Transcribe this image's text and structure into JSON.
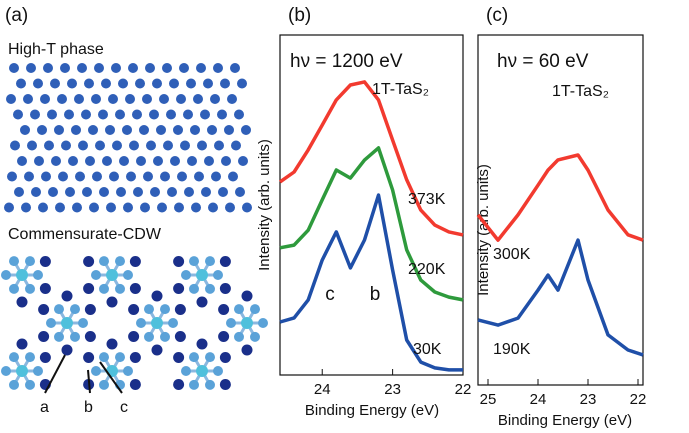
{
  "panel_a": {
    "label": "(a)",
    "top_title": "High-T  phase",
    "bottom_title": "Commensurate-CDW",
    "site_labels": [
      "a",
      "b",
      "c"
    ]
  },
  "chart_data": [
    {
      "type": "line",
      "label": "(b)",
      "annotations": [
        "hν = 1200 eV",
        "1T-TaS₂",
        "c",
        "b"
      ],
      "x_label": "Binding Energy (eV)",
      "y_label": "Intensity (arb. units)",
      "x": [
        24.6,
        24.4,
        24.2,
        24.0,
        23.8,
        23.6,
        23.4,
        23.2,
        23.0,
        22.8,
        22.6,
        22.4,
        22.2,
        22.0
      ],
      "xlim": [
        24.6,
        22
      ],
      "xticks": [
        24,
        23,
        22
      ],
      "ylim": [
        0,
        10
      ],
      "series": [
        {
          "name": "373K",
          "color": "#f23a2f",
          "values": [
            5.68,
            5.97,
            6.62,
            7.35,
            8.09,
            8.53,
            8.62,
            8.09,
            6.91,
            5.74,
            4.85,
            4.41,
            4.21,
            4.12
          ]
        },
        {
          "name": "220K",
          "color": "#2e9a3c",
          "values": [
            3.74,
            3.82,
            4.26,
            5.15,
            6.03,
            5.79,
            6.32,
            6.68,
            5.44,
            3.68,
            2.79,
            2.44,
            2.29,
            2.21
          ]
        },
        {
          "name": "30K",
          "color": "#1f4fa8",
          "values": [
            1.56,
            1.68,
            2.21,
            3.38,
            4.21,
            3.15,
            3.97,
            5.29,
            3.09,
            1.03,
            0.38,
            0.21,
            0.15,
            0.15
          ]
        }
      ]
    },
    {
      "type": "line",
      "label": "(c)",
      "annotations": [
        "hν = 60 eV",
        "1T-TaS₂"
      ],
      "x_label": "Binding Energy (eV)",
      "y_label": "Intensity (arb. units)",
      "x": [
        25.2,
        24.8,
        24.4,
        24.0,
        23.8,
        23.6,
        23.2,
        23.0,
        22.6,
        22.2,
        21.9
      ],
      "xlim": [
        25.2,
        21.9
      ],
      "xticks": [
        25,
        24,
        23,
        22
      ],
      "ylim": [
        0,
        10
      ],
      "series": [
        {
          "name": "300K",
          "color": "#f23a2f",
          "values": [
            4.86,
            4.14,
            4.86,
            5.71,
            6.14,
            6.43,
            6.57,
            6.14,
            5.0,
            4.29,
            4.14
          ]
        },
        {
          "name": "190K",
          "color": "#1f4fa8",
          "values": [
            1.86,
            1.71,
            1.91,
            2.71,
            3.14,
            2.71,
            4.14,
            3.0,
            1.43,
            1.0,
            0.86
          ]
        }
      ]
    }
  ]
}
